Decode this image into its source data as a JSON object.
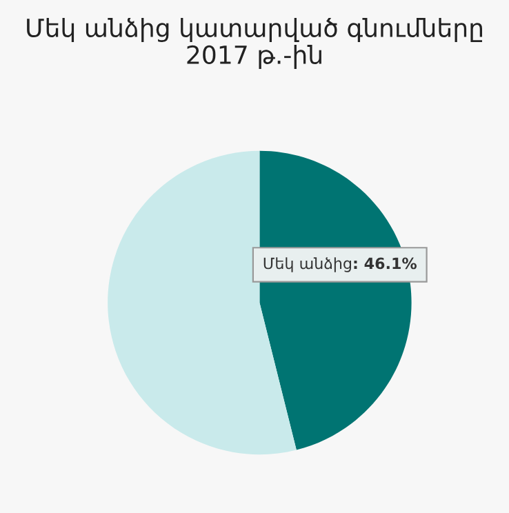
{
  "chart_data": {
    "type": "pie",
    "title": "Մեկ անձից կատարված գնումները\n2017 թ.-ին",
    "categories": [
      "Մեկ անձից",
      null
    ],
    "values": [
      46.1,
      53.9
    ],
    "colors": [
      "#007472",
      "#c9eaeb"
    ],
    "value_labels": [
      ": 46.1%",
      null
    ],
    "legend": false
  }
}
